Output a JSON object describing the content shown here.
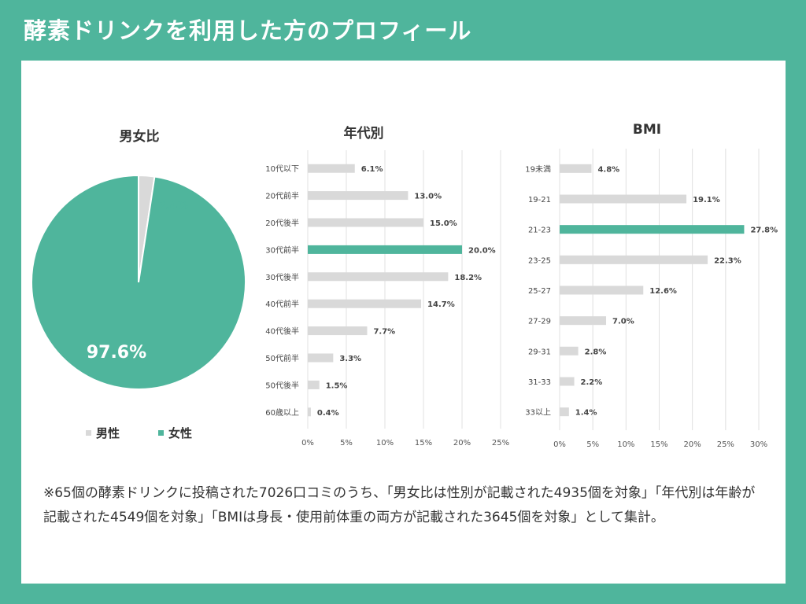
{
  "page": {
    "title": "酵素ドリンクを利用した方のプロフィール",
    "note": "※65個の酵素ドリンクに投稿された7026口コミのうち、「男女比は性別が記載された4935個を対象」「年代別は年齢が記載された4549個を対象」「BMIは身長・使用前体重の両方が記載された3645個を対象」として集計。"
  },
  "colors": {
    "accent": "#4fb59c",
    "neutral": "#d9d9d9"
  },
  "chart_data": [
    {
      "type": "pie",
      "title": "男女比",
      "labels": [
        "男性",
        "女性"
      ],
      "values": [
        2.4,
        97.6
      ],
      "value_labels": [
        "2.4%",
        "97.6%"
      ],
      "colors": [
        "#d9d9d9",
        "#4fb59c"
      ],
      "legend": "bottom"
    },
    {
      "type": "bar",
      "orientation": "horizontal",
      "title": "年代別",
      "categories": [
        "10代以下",
        "20代前半",
        "20代後半",
        "30代前半",
        "30代後半",
        "40代前半",
        "40代後半",
        "50代前半",
        "50代後半",
        "60歳以上"
      ],
      "values": [
        6.1,
        13.0,
        15.0,
        20.0,
        18.2,
        14.7,
        7.7,
        3.3,
        1.5,
        0.4
      ],
      "value_labels": [
        "6.1%",
        "13.0%",
        "15.0%",
        "20.0%",
        "18.2%",
        "14.7%",
        "7.7%",
        "3.3%",
        "1.5%",
        "0.4%"
      ],
      "highlight": "30代前半",
      "xlim": [
        0,
        25
      ],
      "xticks": [
        0,
        5,
        10,
        15,
        20,
        25
      ],
      "xtick_labels": [
        "0%",
        "5%",
        "10%",
        "15%",
        "20%",
        "25%"
      ],
      "grid": true
    },
    {
      "type": "bar",
      "orientation": "horizontal",
      "title": "BMI",
      "categories": [
        "19未満",
        "19-21",
        "21-23",
        "23-25",
        "25-27",
        "27-29",
        "29-31",
        "31-33",
        "33以上"
      ],
      "values": [
        4.8,
        19.1,
        27.8,
        22.3,
        12.6,
        7.0,
        2.8,
        2.2,
        1.4
      ],
      "value_labels": [
        "4.8%",
        "19.1%",
        "27.8%",
        "22.3%",
        "12.6%",
        "7.0%",
        "2.8%",
        "2.2%",
        "1.4%"
      ],
      "highlight": "21-23",
      "xlim": [
        0,
        30
      ],
      "xticks": [
        0,
        5,
        10,
        15,
        20,
        25,
        30
      ],
      "xtick_labels": [
        "0%",
        "5%",
        "10%",
        "15%",
        "20%",
        "25%",
        "30%"
      ],
      "grid": true
    }
  ]
}
